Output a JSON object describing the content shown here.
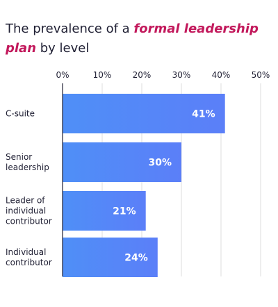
{
  "title": {
    "prefix": "The prevalence of a ",
    "highlight": "formal leadership plan",
    "suffix": " by level"
  },
  "colors": {
    "bar_start": "#4f8ff7",
    "bar_end": "#5b7ff8",
    "highlight": "#c2185b",
    "grid": "#dcdcdc",
    "axis": "#1f1f33",
    "text": "#1f1f33",
    "label_text": "#ffffff"
  },
  "chart_data": {
    "type": "bar",
    "orientation": "horizontal",
    "categories": [
      "C-suite",
      "Senior leadership",
      "Leader of individual contributor",
      "Individual contributor"
    ],
    "category_lines": [
      [
        "C-suite"
      ],
      [
        "Senior",
        "leadership"
      ],
      [
        "Leader of",
        "individual",
        "contributor"
      ],
      [
        "Individual",
        "contributor"
      ]
    ],
    "values": [
      41,
      30,
      21,
      24
    ],
    "data_labels": [
      "41%",
      "30%",
      "21%",
      "24%"
    ],
    "xlim": [
      0,
      50
    ],
    "xticks": [
      0,
      10,
      20,
      30,
      40,
      50
    ],
    "xtick_labels": [
      "0%",
      "10%",
      "20%",
      "30%",
      "40%",
      "50%"
    ],
    "axis_position": "top",
    "grid": true,
    "legend": false
  }
}
